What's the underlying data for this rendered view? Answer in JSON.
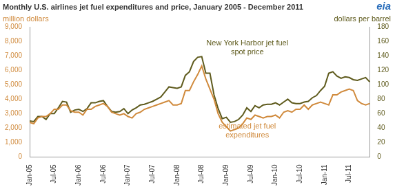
{
  "chart_data": {
    "type": "line",
    "title": "Monthly U.S. airlines jet fuel expenditures and price, January 2005 - December 2011",
    "logo": "eia",
    "y_label": "million dollars",
    "y2_label": "dollars per barrel",
    "categories": [
      "Jan-05",
      null,
      null,
      null,
      null,
      null,
      "Jul-05",
      null,
      null,
      null,
      null,
      null,
      "Jan-06",
      null,
      null,
      null,
      null,
      null,
      "Jul-06",
      null,
      null,
      null,
      null,
      null,
      "Jan-07",
      null,
      null,
      null,
      null,
      null,
      "Jul-07",
      null,
      null,
      null,
      null,
      null,
      "Jan-08",
      null,
      null,
      null,
      null,
      null,
      "Jul-08",
      null,
      null,
      null,
      null,
      null,
      "Jan-09",
      null,
      null,
      null,
      null,
      null,
      "Jul-09",
      null,
      null,
      null,
      null,
      null,
      "Jan-10",
      null,
      null,
      null,
      null,
      null,
      "Jul-10",
      null,
      null,
      null,
      null,
      null,
      "Jan-11",
      null,
      null,
      null,
      null,
      null,
      "Jul-11",
      null,
      null,
      null,
      null,
      null
    ],
    "series": [
      {
        "name": "estimated jet fuel expenditures",
        "color": "#d08a3c",
        "values": [
          2400,
          2300,
          2700,
          2800,
          2800,
          3000,
          3300,
          3300,
          3600,
          3600,
          3200,
          3100,
          3100,
          2900,
          3300,
          3300,
          3500,
          3600,
          3700,
          3500,
          3100,
          3000,
          2900,
          3000,
          2800,
          2700,
          3000,
          3100,
          3300,
          3400,
          3500,
          3600,
          3700,
          3800,
          3900,
          3600,
          3600,
          3700,
          4600,
          4600,
          5200,
          5700,
          6300,
          5400,
          4700,
          4000,
          3000,
          2400,
          2100,
          1800,
          1900,
          2000,
          2300,
          2700,
          2600,
          2900,
          2800,
          2700,
          2800,
          2800,
          2900,
          2700,
          3100,
          3200,
          3100,
          3300,
          3300,
          3600,
          3300,
          3600,
          3700,
          3800,
          3700,
          3600,
          4300,
          4300,
          4500,
          4600,
          4700,
          4600,
          3900,
          3700,
          3600,
          3700
        ]
      },
      {
        "name": "New York Harbor jet fuel spot price",
        "color": "#5e5a1c",
        "axis": "y2",
        "values": [
          50,
          49,
          56,
          56,
          52,
          60,
          60,
          68,
          77,
          76,
          62,
          65,
          66,
          63,
          67,
          75,
          75,
          77,
          78,
          70,
          63,
          62,
          63,
          67,
          60,
          65,
          68,
          72,
          73,
          75,
          77,
          80,
          83,
          90,
          97,
          96,
          95,
          97,
          113,
          118,
          132,
          138,
          139,
          116,
          116,
          86,
          67,
          53,
          55,
          48,
          49,
          52,
          58,
          68,
          63,
          71,
          68,
          72,
          73,
          73,
          75,
          72,
          76,
          80,
          75,
          74,
          74,
          76,
          77,
          82,
          85,
          92,
          98,
          116,
          118,
          112,
          109,
          111,
          110,
          107,
          106,
          108,
          110,
          104
        ]
      }
    ],
    "ylim": [
      0,
      9000
    ],
    "yticks": [
      0,
      {
        "value": 1000,
        "label": "1,000"
      },
      {
        "value": 2000,
        "label": "2,000"
      },
      {
        "value": 3000,
        "label": "3,000"
      },
      {
        "value": 4000,
        "label": "4,000"
      },
      {
        "value": 5000,
        "label": "5,000"
      },
      {
        "value": 6000,
        "label": "6,000"
      },
      {
        "value": 7000,
        "label": "7,000"
      },
      {
        "value": 8000,
        "label": "8,000"
      },
      {
        "value": 9000,
        "label": "9,000"
      }
    ],
    "y2lim": [
      0,
      180
    ],
    "y2ticks": [
      0,
      20,
      40,
      60,
      80,
      100,
      120,
      140,
      160,
      180
    ],
    "grid": false
  }
}
